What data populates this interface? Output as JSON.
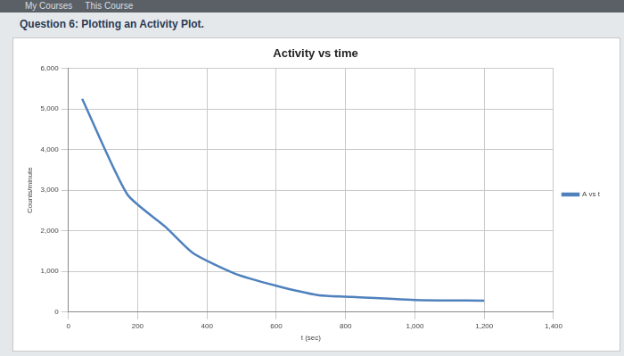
{
  "page": {
    "nav": [
      "My Courses",
      "This Course"
    ],
    "heading": "Question 6: Plotting an Activity Plot."
  },
  "chart_data": {
    "type": "line",
    "title": "Activity vs time",
    "x_label": "t (sec)",
    "y_label": "Counts/minute",
    "x": [
      40,
      170,
      280,
      360,
      480,
      600,
      720,
      800,
      1000,
      1200
    ],
    "series": [
      {
        "name": "A vs t",
        "color": "#4f81bd",
        "values": [
          5250,
          2900,
          2100,
          1450,
          950,
          650,
          420,
          380,
          300,
          280
        ]
      }
    ],
    "xlim": [
      0,
      1400
    ],
    "xticks": [
      0,
      200,
      400,
      600,
      800,
      1000,
      1200,
      1400
    ],
    "ylim": [
      0,
      6000
    ],
    "yticks": [
      0,
      1000,
      2000,
      3000,
      4000,
      5000,
      6000
    ],
    "grid": true,
    "legend": "right"
  }
}
